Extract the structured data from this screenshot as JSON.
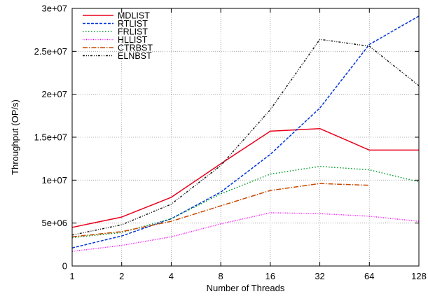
{
  "chart_data": {
    "type": "line",
    "xlabel": "Number of Threads",
    "ylabel": "Throughput (OP/s)",
    "x_scale": "log2",
    "xlim": [
      1,
      128
    ],
    "ylim": [
      0,
      30000000
    ],
    "grid": true,
    "legend_position": "top-left",
    "x": [
      1,
      2,
      4,
      8,
      16,
      32,
      64,
      128
    ],
    "x_tick_labels": [
      "1",
      "2",
      "4",
      "8",
      "16",
      "32",
      "64",
      "128"
    ],
    "y_ticks": [
      0,
      5000000,
      10000000,
      15000000,
      20000000,
      25000000,
      30000000
    ],
    "y_tick_labels": [
      "0",
      "5e+06",
      "1e+07",
      "1.5e+07",
      "2e+07",
      "2.5e+07",
      "3e+07"
    ],
    "series": [
      {
        "name": "MDLIST",
        "color": "#e8001c",
        "dash": "solid",
        "values": [
          4500000,
          5700000,
          8000000,
          11900000,
          15700000,
          16000000,
          13500000,
          13500000
        ]
      },
      {
        "name": "RTLIST",
        "color": "#0033dd",
        "dash": "dashed",
        "values": [
          2100000,
          3500000,
          5500000,
          8600000,
          13000000,
          18400000,
          25800000,
          29100000
        ]
      },
      {
        "name": "FRLIST",
        "color": "#009a28",
        "dash": "dotted",
        "values": [
          3300000,
          3900000,
          5500000,
          8400000,
          10700000,
          11600000,
          11200000,
          9800000
        ]
      },
      {
        "name": "HLLIST",
        "color": "#ee11ee",
        "dash": "dotted-fine",
        "values": [
          1700000,
          2400000,
          3400000,
          4900000,
          6200000,
          6100000,
          5800000,
          5200000
        ]
      },
      {
        "name": "CTRBST",
        "color": "#c84800",
        "dash": "dashdot",
        "values": [
          3400000,
          4000000,
          5200000,
          7000000,
          8800000,
          9600000,
          9400000,
          null
        ]
      },
      {
        "name": "ELNBST",
        "color": "#1a1a1a",
        "dash": "dash-dot-dot",
        "values": [
          3600000,
          4800000,
          7200000,
          11700000,
          18200000,
          26400000,
          25600000,
          21000000
        ]
      }
    ]
  }
}
